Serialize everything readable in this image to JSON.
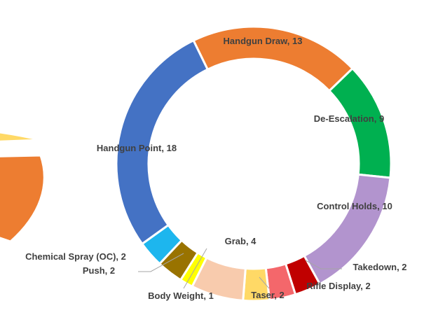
{
  "chart_data": {
    "type": "donut",
    "categories": [
      "Handgun Draw",
      "De-Escalation",
      "Control Holds",
      "Takedown",
      "Rifle Display",
      "Taser",
      "Grab",
      "Body Weight",
      "Push",
      "Chemical Spray (OC)",
      "Handgun Point"
    ],
    "values": [
      13,
      9,
      10,
      2,
      2,
      2,
      4,
      1,
      2,
      2,
      18
    ],
    "colors": [
      "#ED7D31",
      "#00B050",
      "#B294CE",
      "#C00000",
      "#F4676B",
      "#FFD966",
      "#F8CBAD",
      "#FFFF00",
      "#997300",
      "#1DB6EE",
      "#4472C4"
    ]
  }
}
